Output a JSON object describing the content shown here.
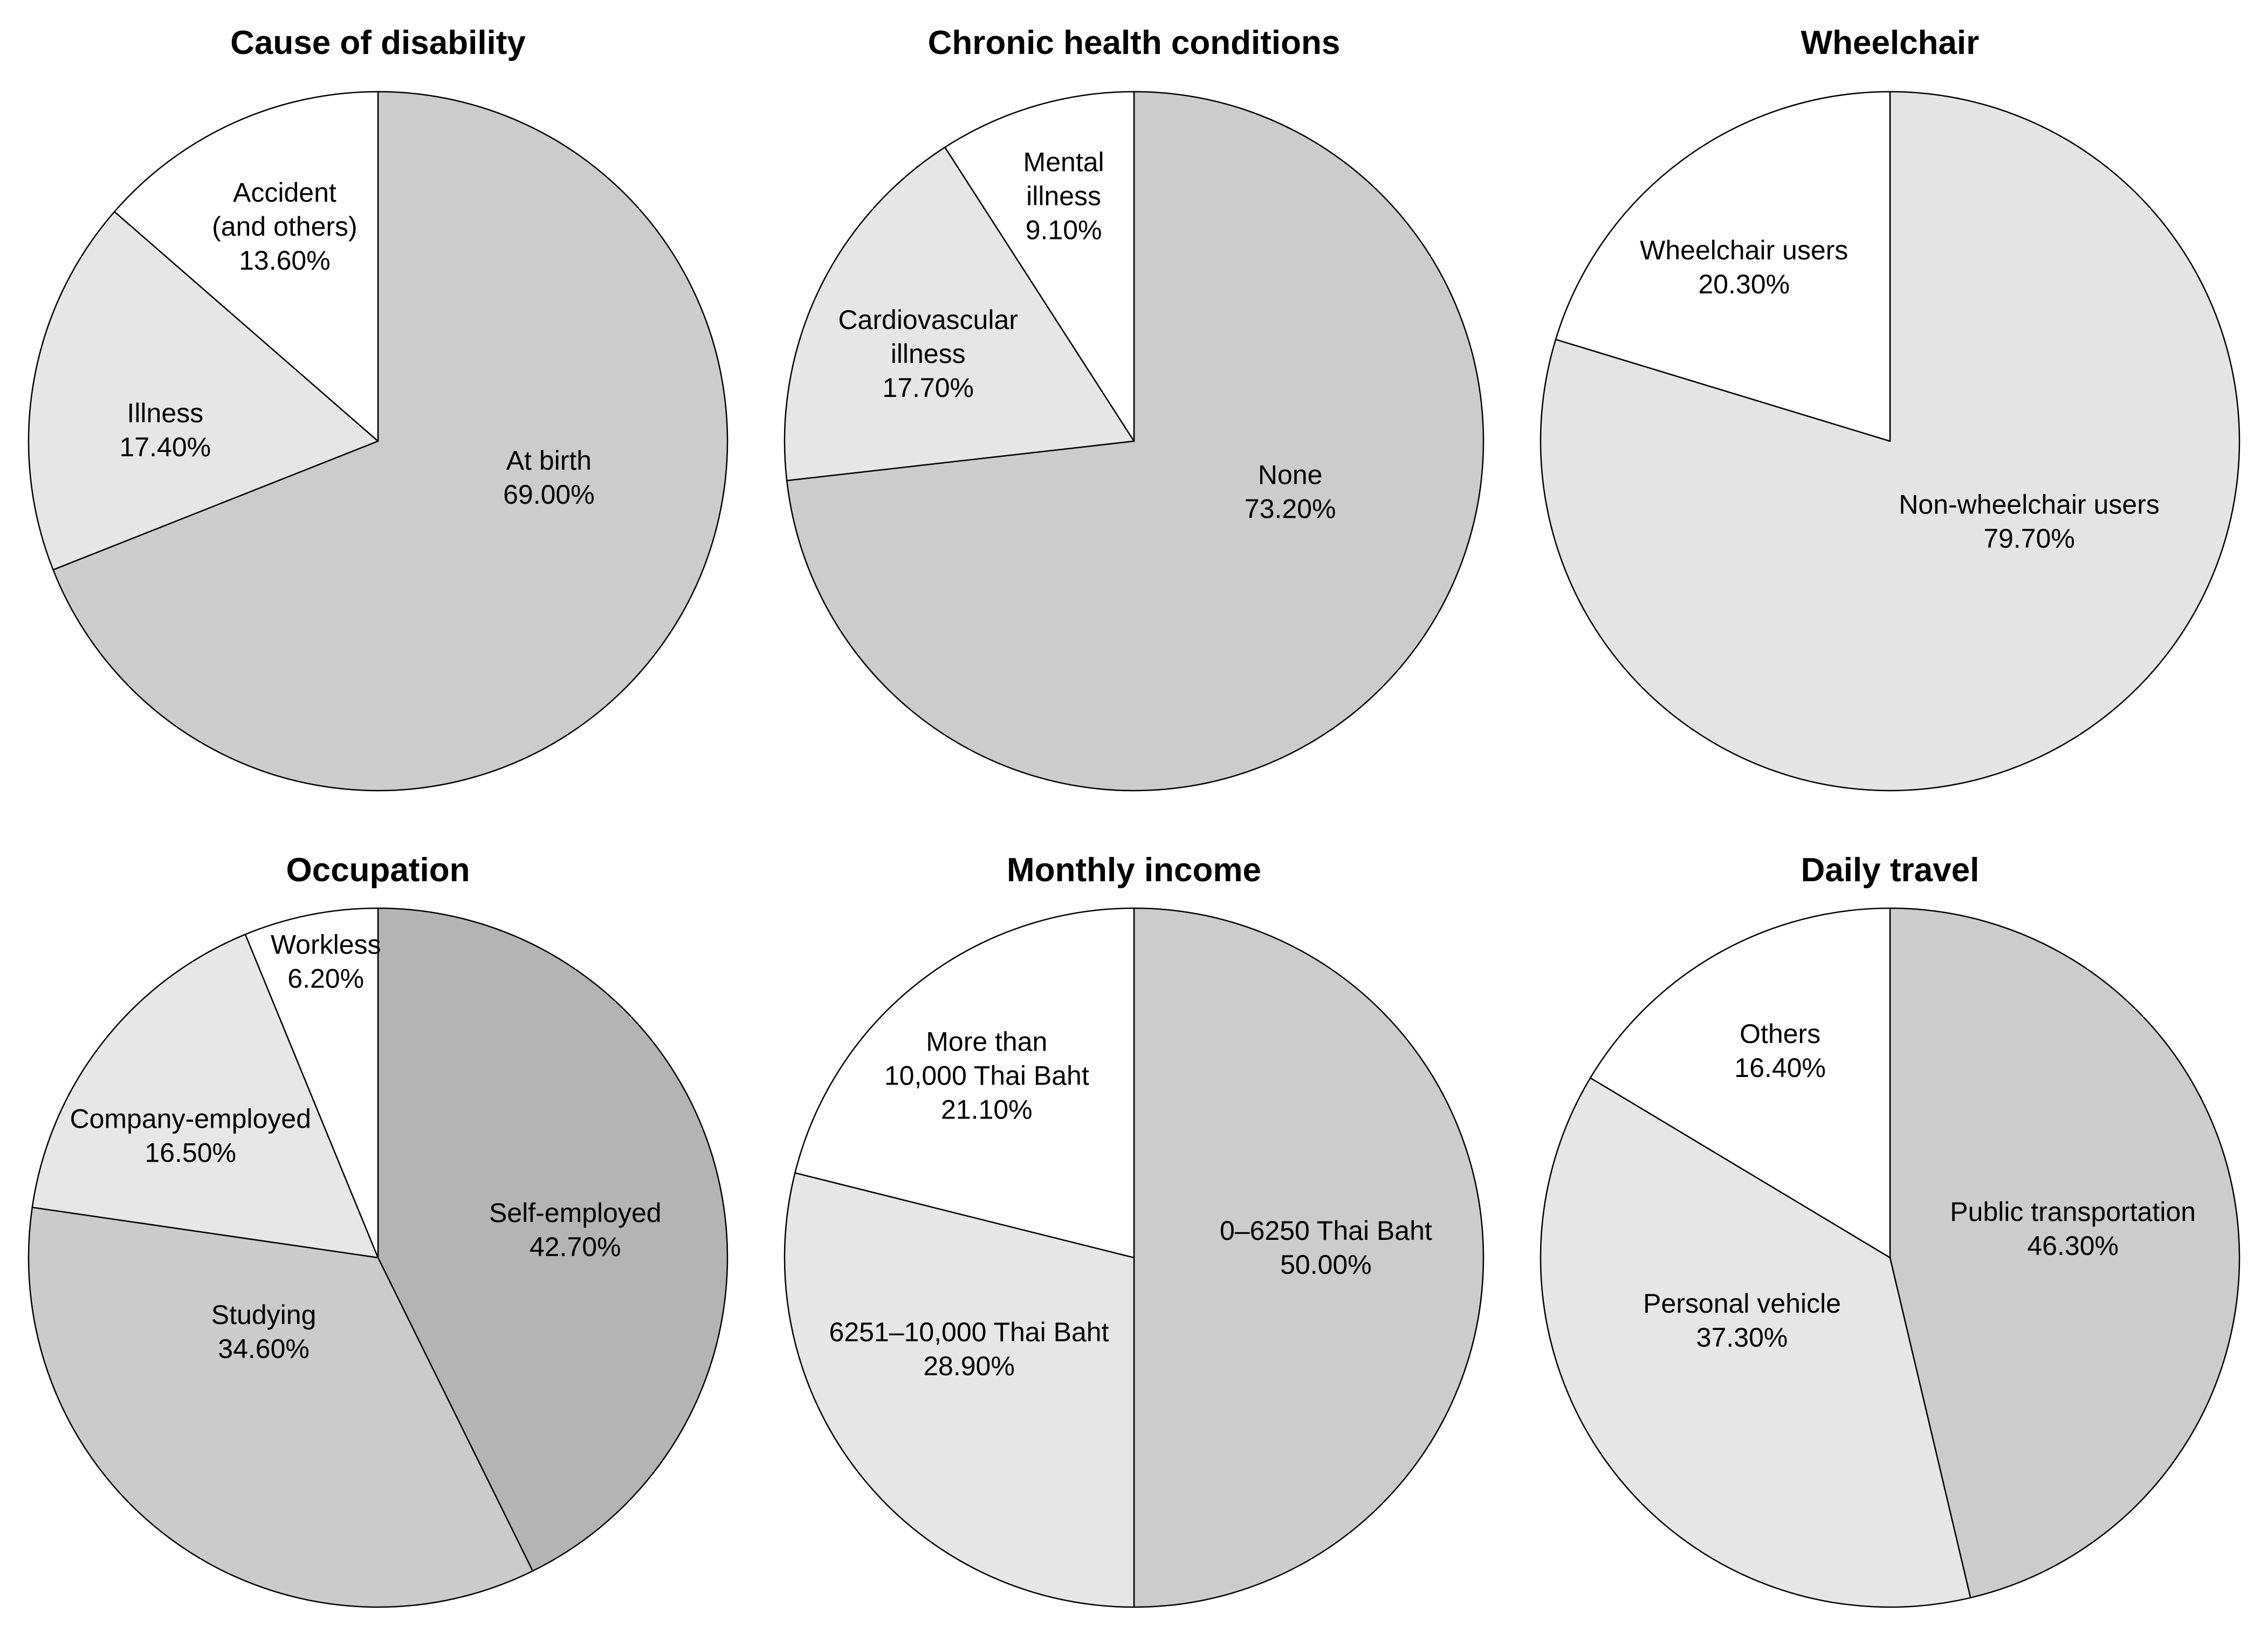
{
  "figure": {
    "background": "#ffffff",
    "stroke_color": "#000000",
    "text_color": "#000000"
  },
  "chart_data": [
    {
      "type": "pie",
      "title": "Cause of disability",
      "start_angle_deg": 0,
      "direction": "clockwise",
      "legend": "none",
      "slices": [
        {
          "label": "At birth",
          "value": 69.0,
          "pct_text": "69.00%",
          "color": "#cccccc",
          "label_lines": [
            "At birth",
            "69.00%"
          ],
          "label_angle_deg": 102,
          "label_r_frac": 0.5
        },
        {
          "label": "Illness",
          "value": 17.4,
          "pct_text": "17.40%",
          "color": "#e6e6e6",
          "label_lines": [
            "Illness",
            "17.40%"
          ],
          "label_angle_deg": 273,
          "label_r_frac": 0.61
        },
        {
          "label": "Accident (and others)",
          "value": 13.6,
          "pct_text": "13.60%",
          "color": "#ffffff",
          "label_lines": [
            "Accident",
            "(and others)",
            "13.60%"
          ],
          "label_angle_deg": 336.5,
          "label_r_frac": 0.67
        }
      ]
    },
    {
      "type": "pie",
      "title": "Chronic health conditions",
      "start_angle_deg": 0,
      "direction": "clockwise",
      "legend": "none",
      "slices": [
        {
          "label": "None",
          "value": 73.2,
          "pct_text": "73.20%",
          "color": "#cccccc",
          "label_lines": [
            "None",
            "73.20%"
          ],
          "label_angle_deg": 108,
          "label_r_frac": 0.47
        },
        {
          "label": "Cardiovascular illness",
          "value": 17.7,
          "pct_text": "17.70%",
          "color": "#e6e6e6",
          "label_lines": [
            "Cardiovascular",
            "illness",
            "17.70%"
          ],
          "label_angle_deg": 293,
          "label_r_frac": 0.64
        },
        {
          "label": "Mental illness",
          "value": 9.1,
          "pct_text": "9.10%",
          "color": "#ffffff",
          "label_lines": [
            "Mental",
            "illness",
            "9.10%"
          ],
          "label_angle_deg": 344,
          "label_r_frac": 0.73
        }
      ]
    },
    {
      "type": "pie",
      "title": "Wheelchair",
      "start_angle_deg": 0,
      "direction": "clockwise",
      "legend": "none",
      "slices": [
        {
          "label": "Non-wheelchair users",
          "value": 79.7,
          "pct_text": "79.70%",
          "color": "#e4e4e4",
          "label_lines": [
            "Non-wheelchair users",
            "79.70%"
          ],
          "label_angle_deg": 120,
          "label_r_frac": 0.46
        },
        {
          "label": "Wheelchair users",
          "value": 20.3,
          "pct_text": "20.30%",
          "color": "#ffffff",
          "label_lines": [
            "Wheelchair users",
            "20.30%"
          ],
          "label_angle_deg": 320,
          "label_r_frac": 0.65
        }
      ]
    },
    {
      "type": "pie",
      "title": "Occupation",
      "start_angle_deg": 0,
      "direction": "clockwise",
      "legend": "none",
      "slices": [
        {
          "label": "Self-employed",
          "value": 42.7,
          "pct_text": "42.70%",
          "color": "#b4b4b4",
          "label_lines": [
            "Self-employed",
            "42.70%"
          ],
          "label_angle_deg": 82,
          "label_r_frac": 0.57
        },
        {
          "label": "Studying",
          "value": 34.6,
          "pct_text": "34.60%",
          "color": "#cbcbcb",
          "label_lines": [
            "Studying",
            "34.60%"
          ],
          "label_angle_deg": 237,
          "label_r_frac": 0.39
        },
        {
          "label": "Company-employed",
          "value": 16.5,
          "pct_text": "16.50%",
          "color": "#e7e7e7",
          "label_lines": [
            "Company-employed",
            "16.50%"
          ],
          "label_angle_deg": 303,
          "label_r_frac": 0.64
        },
        {
          "label": "Workless",
          "value": 6.2,
          "pct_text": "6.20%",
          "color": "#ffffff",
          "label_lines": [
            "Workless",
            "6.20%"
          ],
          "label_angle_deg": 350,
          "label_r_frac": 0.86
        }
      ]
    },
    {
      "type": "pie",
      "title": "Monthly income",
      "start_angle_deg": 0,
      "direction": "clockwise",
      "legend": "none",
      "slices": [
        {
          "label": "0–6250 Thai Baht",
          "value": 50.0,
          "pct_text": "50.00%",
          "color": "#cccccc",
          "label_lines": [
            "0–6250 Thai Baht",
            "50.00%"
          ],
          "label_angle_deg": 87,
          "label_r_frac": 0.55
        },
        {
          "label": "6251–10,000 Thai Baht",
          "value": 28.9,
          "pct_text": "28.90%",
          "color": "#e6e6e6",
          "label_lines": [
            "6251–10,000 Thai Baht",
            "28.90%"
          ],
          "label_angle_deg": 241,
          "label_r_frac": 0.54
        },
        {
          "label": "More than 10,000 Thai Baht",
          "value": 21.1,
          "pct_text": "21.10%",
          "color": "#ffffff",
          "label_lines": [
            "More than",
            "10,000 Thai Baht",
            "21.10%"
          ],
          "label_angle_deg": 321,
          "label_r_frac": 0.67
        }
      ]
    },
    {
      "type": "pie",
      "title": "Daily travel",
      "start_angle_deg": 0,
      "direction": "clockwise",
      "legend": "none",
      "slices": [
        {
          "label": "Public transportation",
          "value": 46.3,
          "pct_text": "46.30%",
          "color": "#cccccc",
          "label_lines": [
            "Public transportation",
            "46.30%"
          ],
          "label_angle_deg": 81,
          "label_r_frac": 0.53
        },
        {
          "label": "Personal vehicle",
          "value": 37.3,
          "pct_text": "37.30%",
          "color": "#e6e6e6",
          "label_lines": [
            "Personal vehicle",
            "37.30%"
          ],
          "label_angle_deg": 247,
          "label_r_frac": 0.46
        },
        {
          "label": "Others",
          "value": 16.4,
          "pct_text": "16.40%",
          "color": "#ffffff",
          "label_lines": [
            "Others",
            "16.40%"
          ],
          "label_angle_deg": 332,
          "label_r_frac": 0.67
        }
      ]
    }
  ]
}
